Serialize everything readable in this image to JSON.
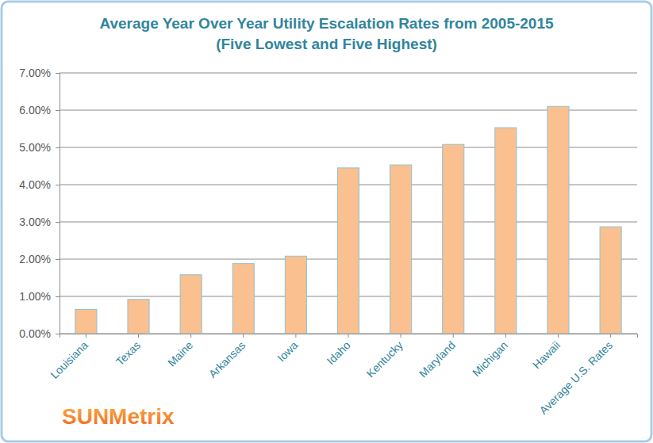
{
  "chart_data": {
    "type": "bar",
    "title": "Average Year Over Year Utility Escalation Rates from 2005-2015",
    "subtitle": "(Five Lowest and Five Highest)",
    "annotations": [
      "SUNMetrix"
    ],
    "categories": [
      "Louisiana",
      "Texas",
      "Maine",
      "Arkansas",
      "Iowa",
      "Idaho",
      "Kentucky",
      "Maryland",
      "Michigan",
      "Hawaii",
      "Average U.S. Rates"
    ],
    "values": [
      0.65,
      0.92,
      1.58,
      1.88,
      2.08,
      4.45,
      4.53,
      5.08,
      5.53,
      6.1,
      2.87
    ],
    "color": "#fac090",
    "ylim": [
      0,
      7
    ],
    "yticks": [
      {
        "value": 0,
        "label": "0.00%"
      },
      {
        "value": 1,
        "label": "1.00%"
      },
      {
        "value": 2,
        "label": "2.00%"
      },
      {
        "value": 3,
        "label": "3.00%"
      },
      {
        "value": 4,
        "label": "4.00%"
      },
      {
        "value": 5,
        "label": "5.00%"
      },
      {
        "value": 6,
        "label": "6.00%"
      },
      {
        "value": 7,
        "label": "7.00%"
      }
    ],
    "grid": true
  }
}
